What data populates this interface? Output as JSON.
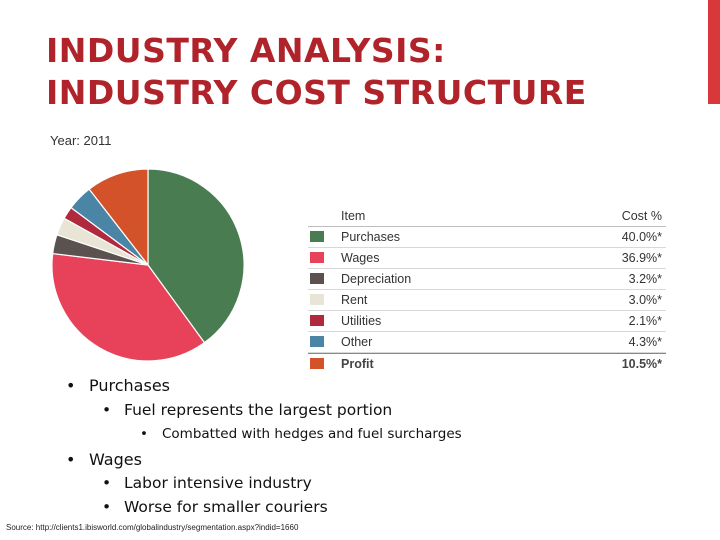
{
  "title": {
    "line1": "INDUSTRY ANALYSIS:",
    "line2": "INDUSTRY COST STRUCTURE"
  },
  "colors": {
    "title": "#b0232a",
    "accent_bar": "#d9383a"
  },
  "chart_data": {
    "type": "pie",
    "title": "Year: 2011",
    "legend": {
      "header_item": "Item",
      "header_cost": "Cost %",
      "placement": "right"
    },
    "slices": [
      {
        "label": "Purchases",
        "value": 40.0,
        "display": "40.0%*",
        "color": "#4a7c52"
      },
      {
        "label": "Wages",
        "value": 36.9,
        "display": "36.9%*",
        "color": "#e8415a"
      },
      {
        "label": "Depreciation",
        "value": 3.2,
        "display": "3.2%*",
        "color": "#5b514f"
      },
      {
        "label": "Rent",
        "value": 3.0,
        "display": "3.0%*",
        "color": "#e8e4d6"
      },
      {
        "label": "Utilities",
        "value": 2.1,
        "display": "2.1%*",
        "color": "#b02a3e"
      },
      {
        "label": "Other",
        "value": 4.3,
        "display": "4.3%*",
        "color": "#4a85a6"
      },
      {
        "label": "Profit",
        "value": 10.5,
        "display": "10.5%*",
        "color": "#d4522a"
      }
    ]
  },
  "bullets": [
    {
      "level": 1,
      "text": "Purchases"
    },
    {
      "level": 2,
      "text": "Fuel represents the largest portion"
    },
    {
      "level": 3,
      "text": "Combatted with hedges and fuel surcharges"
    },
    {
      "level": 1,
      "text": "Wages"
    },
    {
      "level": 2,
      "text": "Labor intensive industry"
    },
    {
      "level": 2,
      "text": "Worse for smaller couriers"
    }
  ],
  "bullet_glyph": "•",
  "source": "Source: http://clients1.ibisworld.com/globalindustry/segmentation.aspx?indid=1660"
}
